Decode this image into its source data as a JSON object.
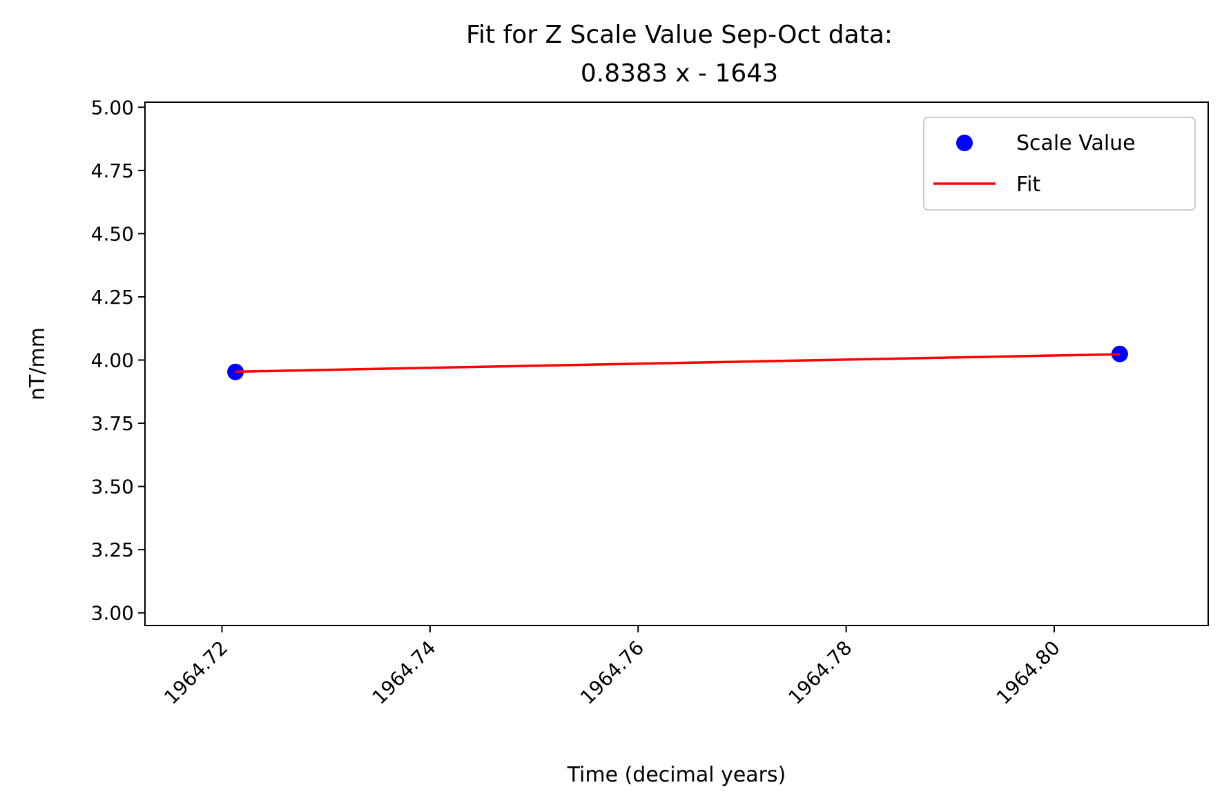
{
  "chart_data": {
    "type": "scatter",
    "title": "Fit for Z Scale Value Sep-Oct data:",
    "subtitle": "0.8383 x - 1643",
    "xlabel": "Time (decimal years)",
    "ylabel": "nT/mm",
    "xlim": [
      1964.7126,
      1964.8148
    ],
    "ylim": [
      2.95,
      5.02
    ],
    "x_ticks": [
      1964.72,
      1964.74,
      1964.76,
      1964.78,
      1964.8
    ],
    "x_tick_labels": [
      "1964.72",
      "1964.74",
      "1964.76",
      "1964.78",
      "1964.80"
    ],
    "y_ticks": [
      3.0,
      3.25,
      3.5,
      3.75,
      4.0,
      4.25,
      4.5,
      4.75,
      5.0
    ],
    "y_tick_labels": [
      "3.00",
      "3.25",
      "3.50",
      "3.75",
      "4.00",
      "4.25",
      "4.50",
      "4.75",
      "5.00"
    ],
    "grid": false,
    "legend": {
      "placement": "upper-right",
      "entries": [
        "Scale Value",
        "Fit"
      ]
    },
    "series": [
      {
        "name": "Scale Value",
        "kind": "scatter",
        "color": "#0000ff",
        "x": [
          1964.7213,
          1964.8063
        ],
        "y": [
          3.953,
          4.024
        ]
      },
      {
        "name": "Fit",
        "kind": "line",
        "color": "#ff0000",
        "x": [
          1964.7213,
          1964.8063
        ],
        "y": [
          3.954,
          4.023
        ]
      }
    ]
  }
}
